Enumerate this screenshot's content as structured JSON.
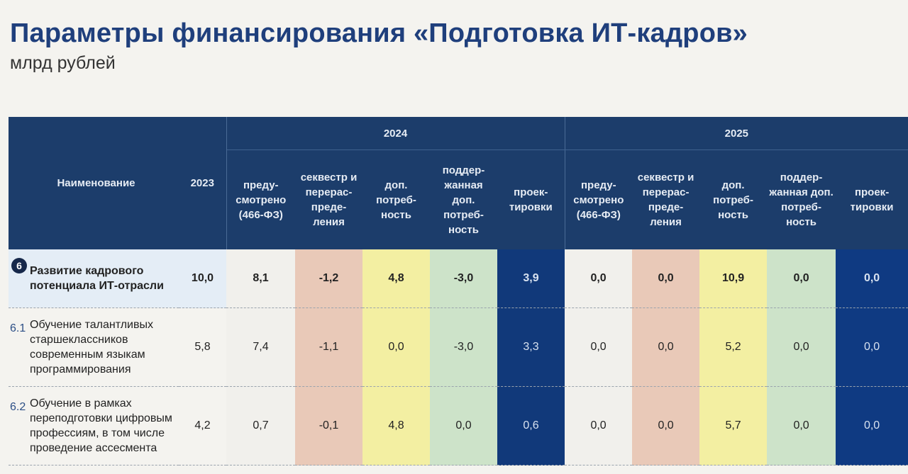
{
  "title": "Параметры финансирования «Подготовка ИТ-кадров»",
  "subtitle": "млрд рублей",
  "table": {
    "headers": {
      "name": "Наименование",
      "y2023": "2023",
      "y2024": "2024",
      "y2025": "2025",
      "cols2024": [
        "преду-смотрено (466-ФЗ)",
        "секвестр и перерас-преде-ления",
        "доп. потреб-ность",
        "поддер-жанная доп. потреб-ность",
        "проек-тировки"
      ],
      "cols2025": [
        "преду-смотрено (466-ФЗ)",
        "секвестр и перерас-преде-ления",
        "доп. потреб-ность",
        "поддер-жанная доп. потреб-ность",
        "проек-тировки"
      ]
    },
    "rows": [
      {
        "num": "6",
        "name": "Развитие кадрового потенциала ИТ-отрасли",
        "v2023": "10,0",
        "v2024": [
          "8,1",
          "-1,2",
          "4,8",
          "-3,0",
          "3,9"
        ],
        "v2025": [
          "0,0",
          "0,0",
          "10,9",
          "0,0",
          "0,0"
        ]
      },
      {
        "num": "6.1",
        "name": "Обучение талантливых старшеклассников современным языкам программирования",
        "v2023": "5,8",
        "v2024": [
          "7,4",
          "-1,1",
          "0,0",
          "-3,0",
          "3,3"
        ],
        "v2025": [
          "0,0",
          "0,0",
          "5,2",
          "0,0",
          "0,0"
        ]
      },
      {
        "num": "6.2",
        "name": "Обучение в рамках переподготовки цифровым профессиям, в том числе проведение ассесмента",
        "v2023": "4,2",
        "v2024": [
          "0,7",
          "-0,1",
          "4,8",
          "0,0",
          "0,6"
        ],
        "v2025": [
          "0,0",
          "0,0",
          "5,7",
          "0,0",
          "0,0"
        ]
      }
    ]
  }
}
